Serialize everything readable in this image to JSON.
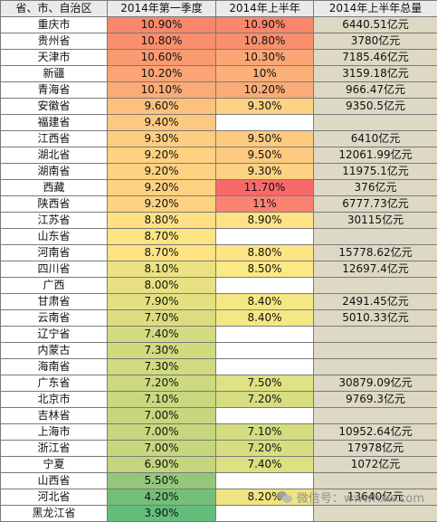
{
  "headers": [
    "省、市、自治区",
    "2014年第一季度",
    "2014年上半年",
    "2014年上半年总量"
  ],
  "rows": [
    {
      "region": "重庆市",
      "q1": "10.90%",
      "h1": "10.90%",
      "total": "6440.51亿元",
      "q1_color": "#f8876b",
      "h1_color": "#f8876b"
    },
    {
      "region": "贵州省",
      "q1": "10.80%",
      "h1": "10.80%",
      "total": "3780亿元",
      "q1_color": "#f98f6d",
      "h1_color": "#f98f6d"
    },
    {
      "region": "天津市",
      "q1": "10.60%",
      "h1": "10.30%",
      "total": "7185.46亿元",
      "q1_color": "#fa9a70",
      "h1_color": "#fba775"
    },
    {
      "region": "新疆",
      "q1": "10.20%",
      "h1": "10%",
      "total": "3159.18亿元",
      "q1_color": "#fba474",
      "h1_color": "#fbb078"
    },
    {
      "region": "青海省",
      "q1": "10.10%",
      "h1": "10.20%",
      "total": "966.47亿元",
      "q1_color": "#fbab76",
      "h1_color": "#fbab76"
    },
    {
      "region": "安徽省",
      "q1": "9.60%",
      "h1": "9.30%",
      "total": "9350.5亿元",
      "q1_color": "#fdc07d",
      "h1_color": "#fdd282"
    },
    {
      "region": "福建省",
      "q1": "9.40%",
      "h1": "",
      "total": "",
      "q1_color": "#fdc97f",
      "h1_color": "#ffffff"
    },
    {
      "region": "江西省",
      "q1": "9.30%",
      "h1": "9.50%",
      "total": "6410亿元",
      "q1_color": "#fdcd81",
      "h1_color": "#fdca80"
    },
    {
      "region": "湖北省",
      "q1": "9.20%",
      "h1": "9.50%",
      "total": "12061.99亿元",
      "q1_color": "#fed280",
      "h1_color": "#fdca80"
    },
    {
      "region": "湖南省",
      "q1": "9.20%",
      "h1": "9.30%",
      "total": "11975.1亿元",
      "q1_color": "#fed280",
      "h1_color": "#fdd282"
    },
    {
      "region": "西藏",
      "q1": "9.20%",
      "h1": "11.70%",
      "total": "376亿元",
      "q1_color": "#fed280",
      "h1_color": "#f8696b"
    },
    {
      "region": "陕西省",
      "q1": "9.20%",
      "h1": "11%",
      "total": "6777.73亿元",
      "q1_color": "#fed280",
      "h1_color": "#f98370"
    },
    {
      "region": "江苏省",
      "q1": "8.80%",
      "h1": "8.90%",
      "total": "30115亿元",
      "q1_color": "#ffe184",
      "h1_color": "#ffe284"
    },
    {
      "region": "山东省",
      "q1": "8.70%",
      "h1": "",
      "total": "",
      "q1_color": "#fee383",
      "h1_color": "#ffffff"
    },
    {
      "region": "河南省",
      "q1": "8.70%",
      "h1": "8.80%",
      "total": "15778.62亿元",
      "q1_color": "#fee383",
      "h1_color": "#ffe484"
    },
    {
      "region": "四川省",
      "q1": "8.10%",
      "h1": "8.50%",
      "total": "12697.4亿元",
      "q1_color": "#ebe282",
      "h1_color": "#fbe983"
    },
    {
      "region": "广西",
      "q1": "8.00%",
      "h1": "",
      "total": "",
      "q1_color": "#e8e182",
      "h1_color": "#ffffff"
    },
    {
      "region": "甘肃省",
      "q1": "7.90%",
      "h1": "8.40%",
      "total": "2491.45亿元",
      "q1_color": "#e4e081",
      "h1_color": "#f4e883"
    },
    {
      "region": "云南省",
      "q1": "7.70%",
      "h1": "8.40%",
      "total": "5010.33亿元",
      "q1_color": "#dcdd80",
      "h1_color": "#f4e883"
    },
    {
      "region": "辽宁省",
      "q1": "7.40%",
      "h1": "",
      "total": "",
      "q1_color": "#d3db80",
      "h1_color": "#ffffff"
    },
    {
      "region": "内蒙古",
      "q1": "7.30%",
      "h1": "",
      "total": "",
      "q1_color": "#d0da7f",
      "h1_color": "#ffffff"
    },
    {
      "region": "海南省",
      "q1": "7.30%",
      "h1": "",
      "total": "",
      "q1_color": "#d0da7f",
      "h1_color": "#ffffff"
    },
    {
      "region": "广东省",
      "q1": "7.20%",
      "h1": "7.50%",
      "total": "30879.09亿元",
      "q1_color": "#ccd97f",
      "h1_color": "#dfe182"
    },
    {
      "region": "北京市",
      "q1": "7.10%",
      "h1": "7.20%",
      "total": "9769.3亿元",
      "q1_color": "#c9d87e",
      "h1_color": "#d6de81"
    },
    {
      "region": "吉林省",
      "q1": "7.00%",
      "h1": "",
      "total": "",
      "q1_color": "#c6d77e",
      "h1_color": "#ffffff"
    },
    {
      "region": "上海市",
      "q1": "7.00%",
      "h1": "7.10%",
      "total": "10952.64亿元",
      "q1_color": "#c6d77e",
      "h1_color": "#d3dd80"
    },
    {
      "region": "浙江省",
      "q1": "7.00%",
      "h1": "7.20%",
      "total": "17978亿元",
      "q1_color": "#c6d77e",
      "h1_color": "#d6de81"
    },
    {
      "region": "宁夏",
      "q1": "6.90%",
      "h1": "7.40%",
      "total": "1072亿元",
      "q1_color": "#c3d67e",
      "h1_color": "#dbe081"
    },
    {
      "region": "山西省",
      "q1": "5.50%",
      "h1": "",
      "total": "",
      "q1_color": "#93c87a",
      "h1_color": "#ffffff"
    },
    {
      "region": "河北省",
      "q1": "4.20%",
      "h1": "8.20%",
      "total": "13640亿元",
      "q1_color": "#74bf78",
      "h1_color": "#eee582"
    },
    {
      "region": "黑龙江省",
      "q1": "3.90%",
      "h1": "",
      "total": "",
      "q1_color": "#63be7b",
      "h1_color": "#ffffff"
    }
  ],
  "watermark": {
    "text": "微信号：wwwhxw.com"
  }
}
